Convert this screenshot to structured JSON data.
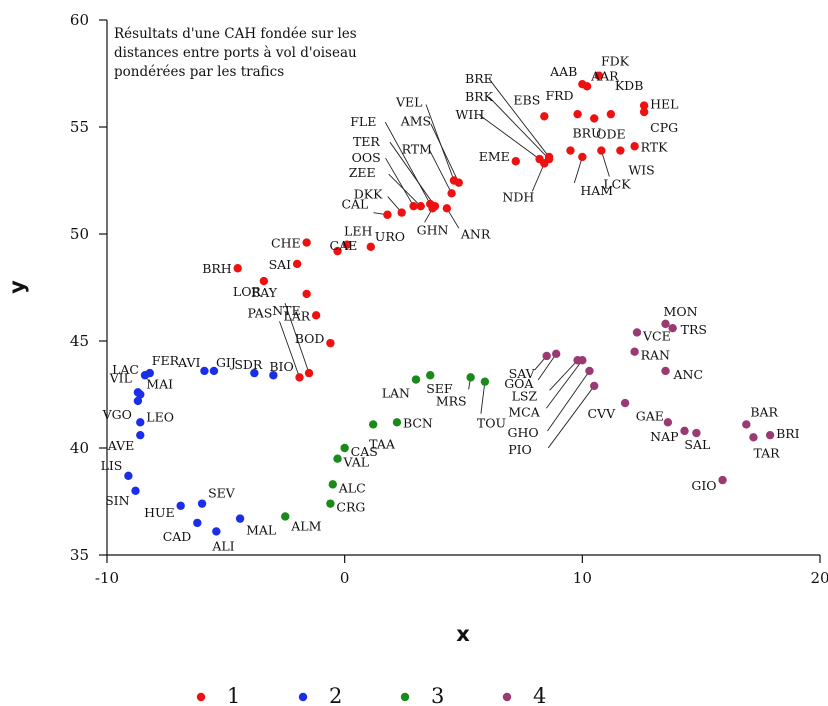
{
  "chart_data": {
    "type": "scatter",
    "title_lines": [
      "Résultats d'une CAH fondée sur les",
      "distances entre ports à vol d'oiseau",
      "pondérées par les trafics"
    ],
    "xlabel": "x",
    "ylabel": "y",
    "xlim": [
      -10,
      20
    ],
    "ylim": [
      35,
      60
    ],
    "xticks": [
      -10,
      0,
      10,
      20
    ],
    "yticks": [
      35,
      40,
      45,
      50,
      55,
      60
    ],
    "grid": false,
    "legend_position": "bottom",
    "colors": {
      "1": "#ee1111",
      "2": "#1a2ee8",
      "3": "#1a8a1a",
      "4": "#9a3a72"
    },
    "legend": [
      {
        "cluster": "1",
        "label": "1"
      },
      {
        "cluster": "2",
        "label": "2"
      },
      {
        "cluster": "3",
        "label": "3"
      },
      {
        "cluster": "4",
        "label": "4"
      }
    ],
    "points": [
      {
        "label": "FDK",
        "cluster": "1",
        "x": 10.7,
        "y": 57.4
      },
      {
        "label": "AAB",
        "cluster": "1",
        "x": 10.0,
        "y": 57.0
      },
      {
        "label": "AAR",
        "cluster": "1",
        "x": 10.2,
        "y": 56.9
      },
      {
        "label": "KDB",
        "cluster": "1",
        "x": 11.2,
        "y": 55.6
      },
      {
        "label": "HEL",
        "cluster": "1",
        "x": 12.6,
        "y": 56.0
      },
      {
        "label": "CPG",
        "cluster": "1",
        "x": 12.6,
        "y": 55.7
      },
      {
        "label": "FRD",
        "cluster": "1",
        "x": 9.8,
        "y": 55.6
      },
      {
        "label": "EBS",
        "cluster": "1",
        "x": 8.4,
        "y": 55.5
      },
      {
        "label": "ODE",
        "cluster": "1",
        "x": 10.5,
        "y": 55.4
      },
      {
        "label": "BRU",
        "cluster": "1",
        "x": 9.5,
        "y": 53.9
      },
      {
        "label": "RTK",
        "cluster": "1",
        "x": 12.2,
        "y": 54.1
      },
      {
        "label": "WIS",
        "cluster": "1",
        "x": 11.6,
        "y": 53.9
      },
      {
        "label": "LCK",
        "cluster": "1",
        "x": 10.8,
        "y": 53.9
      },
      {
        "label": "HAM",
        "cluster": "1",
        "x": 10.0,
        "y": 53.6
      },
      {
        "label": "EME",
        "cluster": "1",
        "x": 7.2,
        "y": 53.4
      },
      {
        "label": "BRE",
        "cluster": "1",
        "x": 8.6,
        "y": 53.6
      },
      {
        "label": "BRK",
        "cluster": "1",
        "x": 8.6,
        "y": 53.5
      },
      {
        "label": "WIH",
        "cluster": "1",
        "x": 8.2,
        "y": 53.5
      },
      {
        "label": "NDH",
        "cluster": "1",
        "x": 8.4,
        "y": 53.3
      },
      {
        "label": "VEL",
        "cluster": "1",
        "x": 4.6,
        "y": 52.5
      },
      {
        "label": "AMS",
        "cluster": "1",
        "x": 4.8,
        "y": 52.4
      },
      {
        "label": "RTM",
        "cluster": "1",
        "x": 4.5,
        "y": 51.9
      },
      {
        "label": "FLE",
        "cluster": "1",
        "x": 3.6,
        "y": 51.4
      },
      {
        "label": "TER",
        "cluster": "1",
        "x": 3.8,
        "y": 51.3
      },
      {
        "label": "OOS",
        "cluster": "1",
        "x": 2.9,
        "y": 51.3
      },
      {
        "label": "ZEE",
        "cluster": "1",
        "x": 3.2,
        "y": 51.3
      },
      {
        "label": "DKK",
        "cluster": "1",
        "x": 2.4,
        "y": 51.0
      },
      {
        "label": "CAL",
        "cluster": "1",
        "x": 1.8,
        "y": 50.9
      },
      {
        "label": "GHN",
        "cluster": "1",
        "x": 3.7,
        "y": 51.2
      },
      {
        "label": "ANR",
        "cluster": "1",
        "x": 4.3,
        "y": 51.2
      },
      {
        "label": "CHE",
        "cluster": "1",
        "x": -1.6,
        "y": 49.6
      },
      {
        "label": "CAE",
        "cluster": "1",
        "x": -0.3,
        "y": 49.2
      },
      {
        "label": "LEH",
        "cluster": "1",
        "x": 0.1,
        "y": 49.5
      },
      {
        "label": "URO",
        "cluster": "1",
        "x": 1.1,
        "y": 49.4
      },
      {
        "label": "BRH",
        "cluster": "1",
        "x": -4.5,
        "y": 48.4
      },
      {
        "label": "SAI",
        "cluster": "1",
        "x": -2.0,
        "y": 48.6
      },
      {
        "label": "LOR",
        "cluster": "1",
        "x": -3.4,
        "y": 47.8
      },
      {
        "label": "NTE",
        "cluster": "1",
        "x": -1.6,
        "y": 47.2
      },
      {
        "label": "LAR",
        "cluster": "1",
        "x": -1.2,
        "y": 46.2
      },
      {
        "label": "BAY",
        "cluster": "1",
        "x": -1.5,
        "y": 43.5
      },
      {
        "label": "PAS",
        "cluster": "1",
        "x": -1.9,
        "y": 43.3
      },
      {
        "label": "BOD",
        "cluster": "1",
        "x": -0.6,
        "y": 44.9
      },
      {
        "label": "LAC",
        "cluster": "2",
        "x": -8.4,
        "y": 43.4
      },
      {
        "label": "FER",
        "cluster": "2",
        "x": -8.2,
        "y": 43.5
      },
      {
        "label": "AVI",
        "cluster": "2",
        "x": -5.9,
        "y": 43.6
      },
      {
        "label": "GIJ",
        "cluster": "2",
        "x": -5.5,
        "y": 43.6
      },
      {
        "label": "SDR",
        "cluster": "2",
        "x": -3.8,
        "y": 43.5
      },
      {
        "label": "BIO",
        "cluster": "2",
        "x": -3.0,
        "y": 43.4
      },
      {
        "label": "VIL",
        "cluster": "2",
        "x": -8.7,
        "y": 42.6
      },
      {
        "label": "MAI",
        "cluster": "2",
        "x": -8.6,
        "y": 42.5
      },
      {
        "label": "VGO",
        "cluster": "2",
        "x": -8.7,
        "y": 42.2
      },
      {
        "label": "LEO",
        "cluster": "2",
        "x": -8.6,
        "y": 41.2
      },
      {
        "label": "AVE",
        "cluster": "2",
        "x": -8.6,
        "y": 40.6
      },
      {
        "label": "LIS",
        "cluster": "2",
        "x": -9.1,
        "y": 38.7
      },
      {
        "label": "SIN",
        "cluster": "2",
        "x": -8.8,
        "y": 38.0
      },
      {
        "label": "SEV",
        "cluster": "2",
        "x": -6.0,
        "y": 37.4
      },
      {
        "label": "HUE",
        "cluster": "2",
        "x": -6.9,
        "y": 37.3
      },
      {
        "label": "CAD",
        "cluster": "2",
        "x": -6.2,
        "y": 36.5
      },
      {
        "label": "ALI",
        "cluster": "2",
        "x": -5.4,
        "y": 36.1
      },
      {
        "label": "MAL",
        "cluster": "2",
        "x": -4.4,
        "y": 36.7
      },
      {
        "label": "ALM",
        "cluster": "3",
        "x": -2.5,
        "y": 36.8
      },
      {
        "label": "LAN",
        "cluster": "3",
        "x": 3.0,
        "y": 43.2
      },
      {
        "label": "SEF",
        "cluster": "3",
        "x": 3.6,
        "y": 43.4
      },
      {
        "label": "MRS",
        "cluster": "3",
        "x": 5.3,
        "y": 43.3
      },
      {
        "label": "TOU",
        "cluster": "3",
        "x": 5.9,
        "y": 43.1
      },
      {
        "label": "BCN",
        "cluster": "3",
        "x": 2.2,
        "y": 41.2
      },
      {
        "label": "TAA",
        "cluster": "3",
        "x": 1.2,
        "y": 41.1
      },
      {
        "label": "CAS",
        "cluster": "3",
        "x": 0.0,
        "y": 40.0
      },
      {
        "label": "VAL",
        "cluster": "3",
        "x": -0.3,
        "y": 39.5
      },
      {
        "label": "ALC",
        "cluster": "3",
        "x": -0.5,
        "y": 38.3
      },
      {
        "label": "CRG",
        "cluster": "3",
        "x": -0.6,
        "y": 37.4
      },
      {
        "label": "SAV",
        "cluster": "4",
        "x": 8.5,
        "y": 44.3
      },
      {
        "label": "GOA",
        "cluster": "4",
        "x": 8.9,
        "y": 44.4
      },
      {
        "label": "LSZ",
        "cluster": "4",
        "x": 9.8,
        "y": 44.1
      },
      {
        "label": "MCA",
        "cluster": "4",
        "x": 10.0,
        "y": 44.1
      },
      {
        "label": "GHO",
        "cluster": "4",
        "x": 10.3,
        "y": 43.6
      },
      {
        "label": "PIO",
        "cluster": "4",
        "x": 10.5,
        "y": 42.9
      },
      {
        "label": "CVV",
        "cluster": "4",
        "x": 11.8,
        "y": 42.1
      },
      {
        "label": "VCE",
        "cluster": "4",
        "x": 12.3,
        "y": 45.4
      },
      {
        "label": "RAN",
        "cluster": "4",
        "x": 12.2,
        "y": 44.5
      },
      {
        "label": "MON",
        "cluster": "4",
        "x": 13.5,
        "y": 45.8
      },
      {
        "label": "TRS",
        "cluster": "4",
        "x": 13.8,
        "y": 45.6
      },
      {
        "label": "ANC",
        "cluster": "4",
        "x": 13.5,
        "y": 43.6
      },
      {
        "label": "GAE",
        "cluster": "4",
        "x": 13.6,
        "y": 41.2
      },
      {
        "label": "NAP",
        "cluster": "4",
        "x": 14.3,
        "y": 40.8
      },
      {
        "label": "SAL",
        "cluster": "4",
        "x": 14.8,
        "y": 40.7
      },
      {
        "label": "BAR",
        "cluster": "4",
        "x": 16.9,
        "y": 41.1
      },
      {
        "label": "BRI",
        "cluster": "4",
        "x": 17.9,
        "y": 40.6
      },
      {
        "label": "TAR",
        "cluster": "4",
        "x": 17.2,
        "y": 40.5
      },
      {
        "label": "GIO",
        "cluster": "4",
        "x": 15.9,
        "y": 38.5
      }
    ]
  }
}
